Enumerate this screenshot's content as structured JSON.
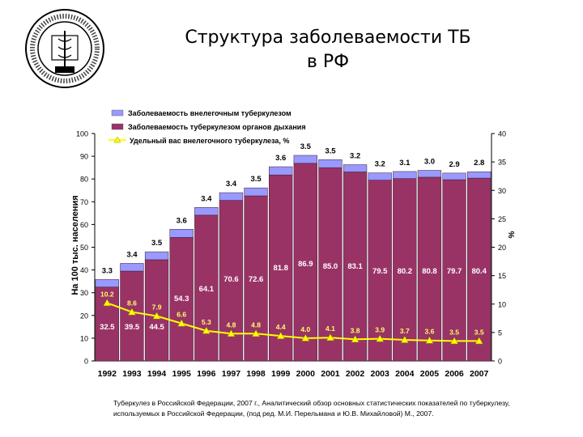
{
  "header": {
    "title_line1": "Структура заболеваемости ТБ",
    "title_line2": "в РФ"
  },
  "source": {
    "line1": "Туберкулез в Российской Федерации, 2007 г., Аналитический обзор основных статистических показателей по туберкулезу,",
    "line2": "используемых в Российской Федерации, (под ред. М.И. Перельмана и Ю.В. Михайловой) М., 2007."
  },
  "colors": {
    "extrapulmonary": "#9999ff",
    "respiratory": "#993366",
    "share_line": "#ffff00",
    "share_marker": "#ffff00"
  },
  "chart_data": {
    "type": "bar",
    "stacked": true,
    "categories": [
      "1992",
      "1993",
      "1994",
      "1995",
      "1996",
      "1997",
      "1998",
      "1999",
      "2000",
      "2001",
      "2002",
      "2003",
      "2004",
      "2005",
      "2006",
      "2007"
    ],
    "ylabel": "На 100 тыс. населения",
    "y2label": "%",
    "ylim": [
      0,
      100
    ],
    "y2lim": [
      0,
      40
    ],
    "yticks": [
      0,
      10,
      20,
      30,
      40,
      50,
      60,
      70,
      80,
      90,
      100
    ],
    "y2ticks": [
      0,
      5,
      10,
      15,
      20,
      25,
      30,
      35,
      40
    ],
    "grid": false,
    "legend_position": "top-left",
    "series": [
      {
        "name": "Заболеваемость туберкулезом органов дыхания",
        "type": "bar",
        "values": [
          32.5,
          39.5,
          44.5,
          54.3,
          64.1,
          70.6,
          72.6,
          81.8,
          86.9,
          85.0,
          83.1,
          79.5,
          80.2,
          80.8,
          79.7,
          80.4
        ],
        "labels": [
          "32.5",
          "39.5",
          "44.5",
          "54.3",
          "64.1",
          "70.6",
          "72.6",
          "81.8",
          "86.9",
          "85.0",
          "83.1",
          "79.5",
          "80.2",
          "80.8",
          "79.7",
          "80.4"
        ]
      },
      {
        "name": "Заболеваемость внелегочным туберкулезом",
        "type": "bar",
        "values": [
          3.3,
          3.4,
          3.5,
          3.6,
          3.4,
          3.4,
          3.5,
          3.6,
          3.5,
          3.5,
          3.2,
          3.2,
          3.1,
          3.0,
          2.9,
          2.8
        ],
        "labels": [
          "3.3",
          "3.4",
          "3.5",
          "3.6",
          "3.4",
          "3.4",
          "3.5",
          "3.6",
          "3.5",
          "3.5",
          "3.2",
          "3.2",
          "3.1",
          "3.0",
          "2.9",
          "2.8"
        ]
      },
      {
        "name": "Удельный вас внелегочного туберкулеза, %",
        "type": "line",
        "axis": "right",
        "values": [
          10.2,
          8.6,
          7.9,
          6.6,
          5.3,
          4.8,
          4.8,
          4.4,
          4.0,
          4.1,
          3.8,
          3.9,
          3.7,
          3.6,
          3.5,
          3.5
        ],
        "labels": [
          "10.2",
          "8.6",
          "7.9",
          "6.6",
          "5.3",
          "4.8",
          "4.8",
          "4.4",
          "4.0",
          "4.1",
          "3.8",
          "3.9",
          "3.7",
          "3.6",
          "3.5",
          "3.5"
        ]
      }
    ]
  }
}
